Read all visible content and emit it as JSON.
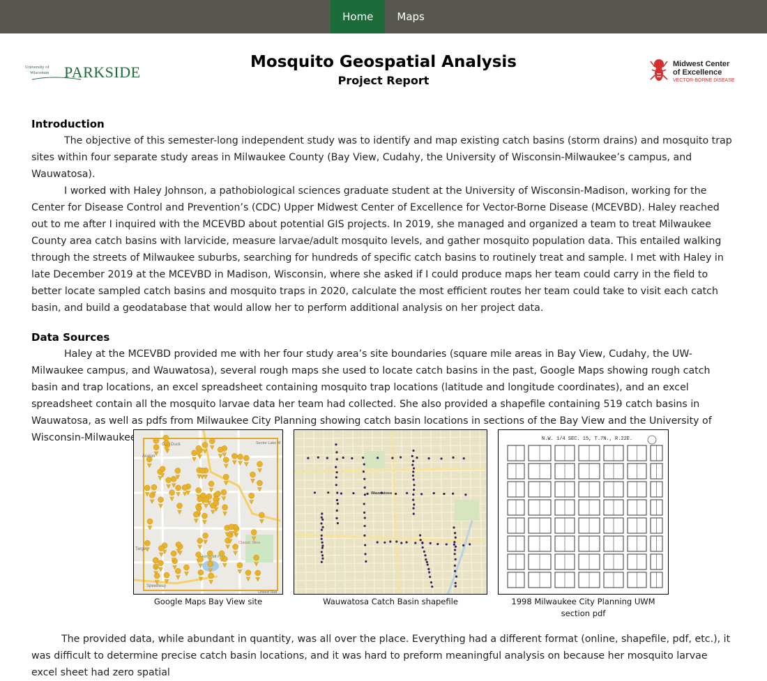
{
  "nav": {
    "items": [
      {
        "label": "Home"
      },
      {
        "label": "Maps"
      }
    ]
  },
  "header": {
    "title": "Mosquito Geospatial Analysis",
    "subtitle": "Project Report",
    "logo_left": {
      "line1": "University of",
      "line2": "Wisconsin",
      "wordmark": "PARKSIDE",
      "accent": "#1e6b3a"
    },
    "logo_right": {
      "line1": "Midwest Center",
      "line2": "of Excellence",
      "line3": "VECTOR-BORNE DISEASE",
      "accent": "#d32f2f"
    }
  },
  "sections": {
    "introduction": {
      "heading": "Introduction",
      "p1": "The objective of this semester-long independent study was to identify and map existing catch basins (storm drains) and mosquito trap sites within four separate study areas in Milwaukee County (Bay View, Cudahy, the University of Wisconsin-Milwaukee’s campus, and Wauwatosa).",
      "p2": "I worked with Haley Johnson, a pathobiological sciences graduate student at the University of Wisconsin-Madison, working for the Center for Disease Control and Prevention’s (CDC) Upper Midwest Center of Excellence for Vector-Borne Disease (MCEVBD). Haley reached out to me after I inquired with the MCEVBD about potential GIS projects. In 2019, she managed and organized a team to treat Milwaukee County area catch basins with larvicide, measure larvae/adult mosquito levels, and gather mosquito population data. This entailed walking through the streets of Milwaukee suburbs, searching for hundreds of specific catch basins to routinely treat and sample. I met with Haley in late December 2019 at the MCEVBD in Madison, Wisconsin, where she asked if I could produce maps her team could carry in the field to better locate sampled catch basins and mosquito traps in 2020, calculate the most efficient routes her team could take to visit each catch basin, and build a geodatabase that would allow her to perform additional analysis on her project data."
    },
    "data_sources": {
      "heading": "Data Sources",
      "p1": "Haley at the MCEVBD provided me with her four study area’s site boundaries (square mile areas in Bay View, Cudahy, the UW-Milwaukee campus, and Wauwatosa), several rough maps she used to locate catch basins in the past, Google Maps showing rough catch basin and trap locations, an excel spreadsheet containing mosquito trap locations (latitude and longitude coordinates), and an excel spreadsheet contain all the mosquito larvae data her team had collected. She also provided a shapefile containing 519 catch basins in Wauwatosa, as well as pdfs from Milwaukee City Planning showing catch basin locations in sections of the Bay View and the University of Wisconsin-Milwaukee (UWM) sites."
    }
  },
  "figures": [
    {
      "caption": "Google Maps Bay View site",
      "labels": [
        "Odd Duck",
        "Avalon",
        "Sector Lake M",
        "Target",
        "Speedway",
        "Classic Slice",
        "Humboldt Park",
        "United Stat"
      ]
    },
    {
      "caption": "Wauwatosa Catch Basin shapefile",
      "labels": [
        "Wauwatosa"
      ]
    },
    {
      "caption": "1998 Milwaukee City Planning UWM section pdf",
      "labels": [
        "N.W. 1/4 SEC. 15, T.7N., R.22E."
      ]
    }
  ],
  "closing": "The provided data, while abundant in quantity, was all over the place. Everything had a different format (online, shapefile, pdf, etc.), it was difficult to determine precise catch basin locations, and it was hard to preform meaningful analysis on because her mosquito larvae excel sheet had zero spatial",
  "colors": {
    "nav_bg": "#57564f",
    "nav_active": "#1e6b3a",
    "marker": "#e8b32a",
    "route": "#3b1e5e"
  }
}
